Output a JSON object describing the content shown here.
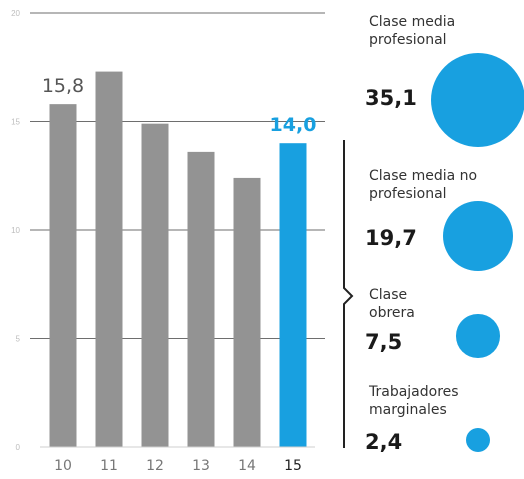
{
  "chart_data": {
    "type": "bar",
    "categories": [
      "10",
      "11",
      "12",
      "13",
      "14",
      "15"
    ],
    "values": [
      15.8,
      17.3,
      14.9,
      13.6,
      12.4,
      14.0
    ],
    "data_labels": [
      {
        "index": 0,
        "text": "15,8"
      },
      {
        "index": 5,
        "text": "14,0"
      }
    ],
    "y_ticks": [
      "0",
      "5",
      "10",
      "15",
      "20"
    ],
    "ylim": [
      0,
      20
    ],
    "grid": true,
    "bar_color": "#939393",
    "highlight_index": 5,
    "highlight_color": "#18a0e0"
  },
  "breakdown": {
    "items": [
      {
        "label_lines": [
          "Clase media",
          "profesional"
        ],
        "value_text": "35,1",
        "value": 35.1
      },
      {
        "label_lines": [
          "Clase media no",
          "profesional"
        ],
        "value_text": "19,7",
        "value": 19.7
      },
      {
        "label_lines": [
          "Clase",
          "obrera"
        ],
        "value_text": "7,5",
        "value": 7.5
      },
      {
        "label_lines": [
          "Trabajadores",
          "marginales"
        ],
        "value_text": "2,4",
        "value": 2.4
      }
    ],
    "bubble_color": "#18a0e0"
  }
}
